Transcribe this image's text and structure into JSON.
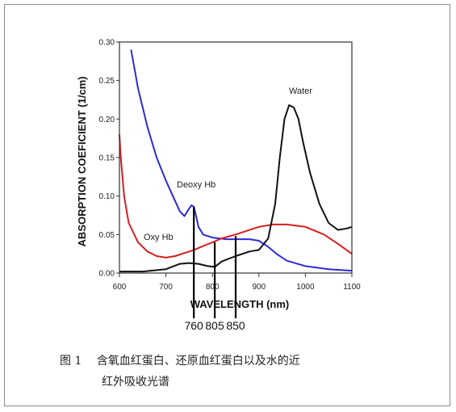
{
  "chart_data": {
    "type": "line",
    "xlabel": "WAVELENGTH (nm)",
    "ylabel": "ABSORPTION COEFICIENT (1/cm)",
    "xlim": [
      600,
      1100
    ],
    "ylim": [
      0,
      0.3
    ],
    "x_ticks": [
      "600",
      "700",
      "800",
      "900",
      "1000",
      "1100"
    ],
    "y_ticks": [
      "0.00",
      "0.05",
      "0.10",
      "0.15",
      "0.20",
      "0.25",
      "0.30"
    ],
    "series": [
      {
        "name": "Deoxy Hb",
        "color": "#2b2bd6",
        "x": [
          625,
          640,
          660,
          680,
          700,
          715,
          730,
          740,
          748,
          755,
          760,
          765,
          770,
          780,
          800,
          830,
          860,
          880,
          900,
          920,
          940,
          960,
          1000,
          1050,
          1100
        ],
        "y": [
          0.29,
          0.24,
          0.19,
          0.15,
          0.12,
          0.1,
          0.08,
          0.074,
          0.082,
          0.088,
          0.086,
          0.074,
          0.06,
          0.05,
          0.046,
          0.044,
          0.044,
          0.044,
          0.042,
          0.034,
          0.024,
          0.016,
          0.009,
          0.005,
          0.003
        ]
      },
      {
        "name": "Oxy Hb",
        "color": "#d42020",
        "x": [
          600,
          603,
          610,
          620,
          640,
          660,
          680,
          700,
          720,
          740,
          760,
          780,
          800,
          820,
          850,
          880,
          900,
          930,
          960,
          1000,
          1040,
          1070,
          1100
        ],
        "y": [
          0.18,
          0.15,
          0.1,
          0.065,
          0.04,
          0.028,
          0.022,
          0.02,
          0.022,
          0.026,
          0.03,
          0.035,
          0.04,
          0.045,
          0.05,
          0.056,
          0.06,
          0.063,
          0.063,
          0.06,
          0.05,
          0.038,
          0.025
        ]
      },
      {
        "name": "Water",
        "color": "#111111",
        "x": [
          600,
          650,
          700,
          730,
          750,
          770,
          790,
          805,
          820,
          850,
          880,
          900,
          920,
          935,
          945,
          955,
          965,
          975,
          985,
          995,
          1010,
          1030,
          1050,
          1070,
          1090,
          1100
        ],
        "y": [
          0.002,
          0.002,
          0.005,
          0.012,
          0.013,
          0.012,
          0.009,
          0.008,
          0.015,
          0.022,
          0.028,
          0.03,
          0.045,
          0.09,
          0.15,
          0.2,
          0.218,
          0.215,
          0.2,
          0.17,
          0.13,
          0.09,
          0.065,
          0.056,
          0.058,
          0.06
        ]
      }
    ],
    "annotations": [
      {
        "text": "Deoxy Hb"
      },
      {
        "text": "Oxy Hb"
      },
      {
        "text": "Water"
      }
    ],
    "marker_lines": [
      760,
      805,
      850
    ],
    "marker_labels": [
      "760",
      "805",
      "850"
    ]
  },
  "caption": {
    "figure": "图 1",
    "line1": "含氧血红蛋白、还原血红蛋白以及水的近",
    "line2": "红外吸收光谱"
  }
}
